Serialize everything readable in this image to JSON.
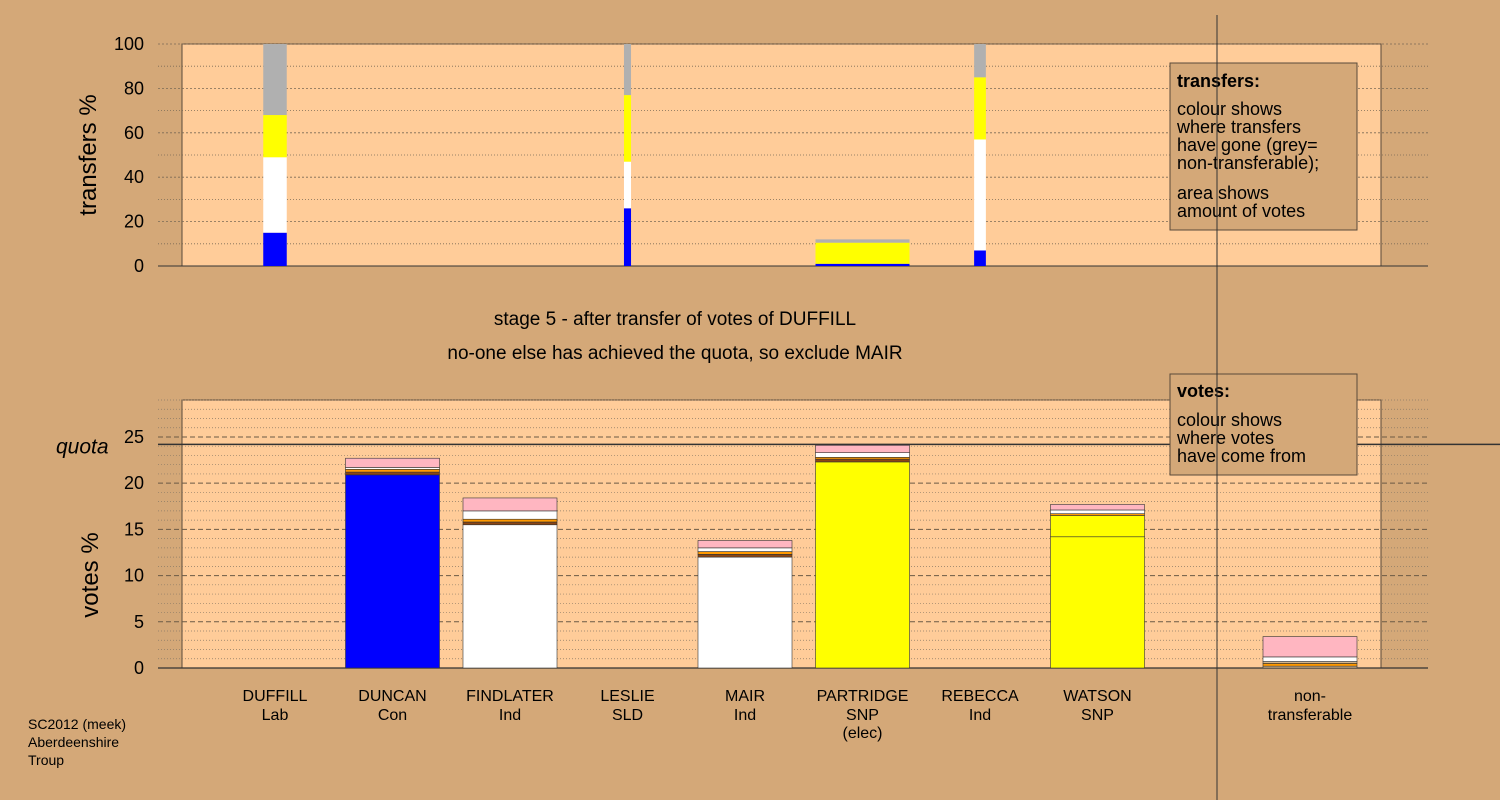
{
  "colors": {
    "background": "#d4a878",
    "plot_area": "#ffcc99",
    "grey": "#b0b0b0",
    "yellow": "#ffff00",
    "white": "#ffffff",
    "blue": "#0000ff",
    "pink": "#ffb6c1",
    "orange": "#ff9900",
    "brown": "#8b4513",
    "tan": "#d2b48c"
  },
  "stage": {
    "line1": "stage 5 - after transfer of votes of DUFFILL",
    "line2": "no-one else has achieved the quota, so exclude MAIR"
  },
  "footer": {
    "line1": "SC2012 (meek)",
    "line2": "Aberdeenshire",
    "line3": "Troup"
  },
  "candidates": [
    {
      "name": "DUFFILL",
      "party": "Lab",
      "extra": ""
    },
    {
      "name": "DUNCAN",
      "party": "Con",
      "extra": ""
    },
    {
      "name": "FINDLATER",
      "party": "Ind",
      "extra": ""
    },
    {
      "name": "LESLIE",
      "party": "SLD",
      "extra": ""
    },
    {
      "name": "MAIR",
      "party": "Ind",
      "extra": ""
    },
    {
      "name": "PARTRIDGE",
      "party": "SNP",
      "extra": "(elec)"
    },
    {
      "name": "REBECCA",
      "party": "Ind",
      "extra": ""
    },
    {
      "name": "WATSON",
      "party": "SNP",
      "extra": ""
    },
    {
      "name": "non-",
      "party": "transferable",
      "extra": ""
    }
  ],
  "chart_data": [
    {
      "type": "bar",
      "ylabel": "transfers %",
      "ylim": [
        0,
        100
      ],
      "ticks": [
        0,
        20,
        40,
        60,
        80,
        100
      ],
      "legend": {
        "title": "transfers:",
        "lines": [
          "colour shows",
          "where transfers",
          "have gone (grey=",
          "non-transferable);"
        ],
        "lines2": [
          "area shows",
          "amount of votes"
        ]
      },
      "bars": [
        {
          "x_center": 1,
          "width": 0.2,
          "segments": [
            {
              "from": 0,
              "to": 15,
              "color": "blue"
            },
            {
              "from": 15,
              "to": 49,
              "color": "white"
            },
            {
              "from": 49,
              "to": 68,
              "color": "yellow"
            },
            {
              "from": 68,
              "to": 100,
              "color": "grey"
            }
          ]
        },
        {
          "x_center": 4,
          "width": 0.06,
          "segments": [
            {
              "from": 0,
              "to": 26,
              "color": "blue"
            },
            {
              "from": 26,
              "to": 47,
              "color": "white"
            },
            {
              "from": 47,
              "to": 77,
              "color": "yellow"
            },
            {
              "from": 77,
              "to": 100,
              "color": "grey"
            }
          ]
        },
        {
          "x_center": 6,
          "width": 0.8,
          "segments": [
            {
              "from": 0,
              "to": 1,
              "color": "blue"
            },
            {
              "from": 1,
              "to": 10.5,
              "color": "yellow"
            },
            {
              "from": 10.5,
              "to": 12,
              "color": "grey"
            }
          ]
        },
        {
          "x_center": 7,
          "width": 0.1,
          "segments": [
            {
              "from": 0,
              "to": 7,
              "color": "blue"
            },
            {
              "from": 7,
              "to": 57,
              "color": "white"
            },
            {
              "from": 57,
              "to": 85,
              "color": "yellow"
            },
            {
              "from": 85,
              "to": 100,
              "color": "grey"
            }
          ]
        }
      ]
    },
    {
      "type": "bar",
      "ylabel": "votes %",
      "ylim": [
        0,
        29
      ],
      "ticks": [
        0,
        5,
        10,
        15,
        20,
        25
      ],
      "quota": 24.2,
      "quota_label": "quota",
      "legend": {
        "title": "votes:",
        "lines": [
          "colour shows",
          "where votes",
          "have come from"
        ]
      },
      "categories": [
        "DUFFILL",
        "DUNCAN",
        "FINDLATER",
        "LESLIE",
        "MAIR",
        "PARTRIDGE",
        "REBECCA",
        "WATSON",
        "non-transferable"
      ],
      "bars": [
        {
          "category": "DUFFILL",
          "segments": []
        },
        {
          "category": "DUNCAN",
          "segments": [
            {
              "value": 20.9,
              "color": "blue"
            },
            {
              "value": 0.3,
              "color": "brown"
            },
            {
              "value": 0.3,
              "color": "orange"
            },
            {
              "value": 0.2,
              "color": "white"
            },
            {
              "value": 1.0,
              "color": "pink"
            }
          ]
        },
        {
          "category": "FINDLATER",
          "segments": [
            {
              "value": 15.5,
              "color": "white"
            },
            {
              "value": 0.3,
              "color": "brown"
            },
            {
              "value": 0.3,
              "color": "orange"
            },
            {
              "value": 0.9,
              "color": "white"
            },
            {
              "value": 1.4,
              "color": "pink"
            }
          ]
        },
        {
          "category": "LESLIE",
          "segments": []
        },
        {
          "category": "MAIR",
          "segments": [
            {
              "value": 12.0,
              "color": "white"
            },
            {
              "value": 0.3,
              "color": "brown"
            },
            {
              "value": 0.3,
              "color": "orange"
            },
            {
              "value": 0.4,
              "color": "white"
            },
            {
              "value": 0.8,
              "color": "pink"
            }
          ]
        },
        {
          "category": "PARTRIDGE",
          "segments": [
            {
              "value": 22.3,
              "color": "yellow"
            },
            {
              "value": 0.3,
              "color": "brown"
            },
            {
              "value": 0.2,
              "color": "orange"
            },
            {
              "value": 0.5,
              "color": "white"
            },
            {
              "value": 0.8,
              "color": "pink"
            }
          ]
        },
        {
          "category": "REBECCA",
          "segments": []
        },
        {
          "category": "WATSON",
          "segments": [
            {
              "value": 14.2,
              "color": "yellow"
            },
            {
              "value": 2.3,
              "color": "yellow"
            },
            {
              "value": 0.2,
              "color": "orange"
            },
            {
              "value": 0.4,
              "color": "white"
            },
            {
              "value": 0.6,
              "color": "pink"
            }
          ]
        },
        {
          "category": "non-transferable",
          "segments": [
            {
              "value": 0.2,
              "color": "tan"
            },
            {
              "value": 0.3,
              "color": "orange"
            },
            {
              "value": 0.2,
              "color": "tan"
            },
            {
              "value": 0.5,
              "color": "white"
            },
            {
              "value": 2.2,
              "color": "pink"
            }
          ]
        }
      ]
    }
  ]
}
